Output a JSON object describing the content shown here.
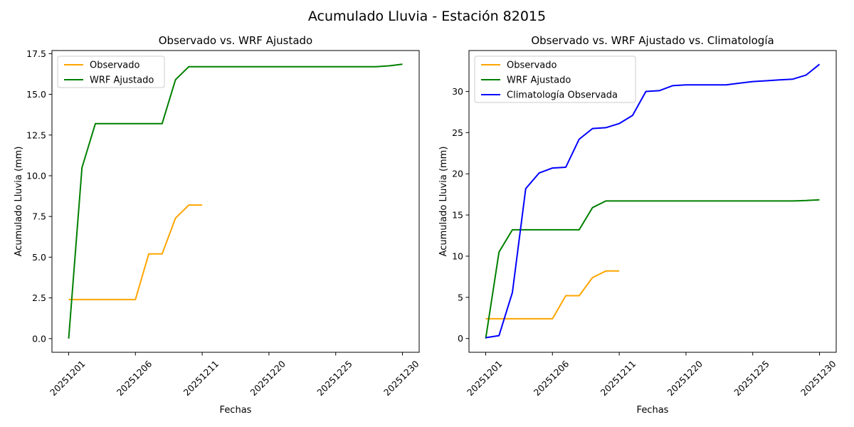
{
  "figure": {
    "background": "#FFFFFF",
    "text_color": "#000000"
  },
  "chart_data": {
    "type": "line",
    "suptitle": "Acumulado Lluvia - Estación 82015",
    "grid": false,
    "x_axis": {
      "label": "Fechas",
      "tick_positions": [
        0,
        5,
        10,
        15,
        20,
        25
      ],
      "tick_labels": [
        "20251201",
        "20251206",
        "20251211",
        "20251220",
        "20251225",
        "20251230"
      ],
      "tick_rotation_deg": 45,
      "xlim": [
        -1.25,
        26.25
      ]
    },
    "series": {
      "observado": {
        "legend_label": "Observado",
        "color": "#FFA500",
        "x": [
          0,
          1,
          2,
          3,
          4,
          5,
          6,
          7,
          8,
          9,
          10
        ],
        "y": [
          2.4,
          2.4,
          2.4,
          2.4,
          2.4,
          2.4,
          5.2,
          5.2,
          7.4,
          8.2,
          8.2
        ]
      },
      "wrf_ajustado": {
        "legend_label": "WRF Ajustado",
        "color": "#008000",
        "x": [
          0,
          1,
          2,
          3,
          4,
          5,
          6,
          7,
          8,
          9,
          10,
          11,
          12,
          13,
          14,
          15,
          16,
          17,
          18,
          19,
          20,
          21,
          22,
          23,
          24,
          25
        ],
        "y": [
          0.0,
          10.5,
          13.2,
          13.2,
          13.2,
          13.2,
          13.2,
          13.2,
          15.9,
          16.7,
          16.7,
          16.7,
          16.7,
          16.7,
          16.7,
          16.7,
          16.7,
          16.7,
          16.7,
          16.7,
          16.7,
          16.7,
          16.7,
          16.7,
          16.75,
          16.85
        ]
      },
      "climatologia": {
        "legend_label": "Climatología Observada",
        "color": "#0000FF",
        "x": [
          0,
          1,
          2,
          3,
          4,
          5,
          6,
          7,
          8,
          9,
          10,
          11,
          12,
          13,
          14,
          15,
          16,
          17,
          18,
          19,
          20,
          21,
          22,
          23,
          24,
          25
        ],
        "y": [
          0.1,
          0.35,
          5.6,
          18.2,
          20.1,
          20.7,
          20.8,
          24.2,
          25.5,
          25.6,
          26.1,
          27.1,
          30.0,
          30.1,
          30.7,
          30.8,
          30.8,
          30.8,
          30.8,
          31.0,
          31.2,
          31.3,
          31.4,
          31.5,
          32.0,
          33.3
        ]
      }
    },
    "subplots": [
      {
        "title": "Observado vs. WRF Ajustado",
        "xlabel": "Fechas",
        "ylabel": "Acumulado Lluvia (mm)",
        "ylim": [
          -0.84,
          17.69
        ],
        "ytick_values": [
          0,
          2.5,
          5,
          7.5,
          10,
          12.5,
          15,
          17.5
        ],
        "ytick_labels": [
          "0.0",
          "2.5",
          "5.0",
          "7.5",
          "10.0",
          "12.5",
          "15.0",
          "17.5"
        ],
        "series_keys": [
          "observado",
          "wrf_ajustado"
        ],
        "legend_position": "upper left"
      },
      {
        "title": "Observado vs. WRF Ajustado vs. Climatología",
        "xlabel": "Fechas",
        "ylabel": "Acumulado Lluvia (mm)",
        "ylim": [
          -1.67,
          34.97
        ],
        "ytick_values": [
          0,
          5,
          10,
          15,
          20,
          25,
          30
        ],
        "ytick_labels": [
          "0",
          "5",
          "10",
          "15",
          "20",
          "25",
          "30"
        ],
        "series_keys": [
          "observado",
          "wrf_ajustado",
          "climatologia"
        ],
        "legend_position": "upper left"
      }
    ]
  }
}
